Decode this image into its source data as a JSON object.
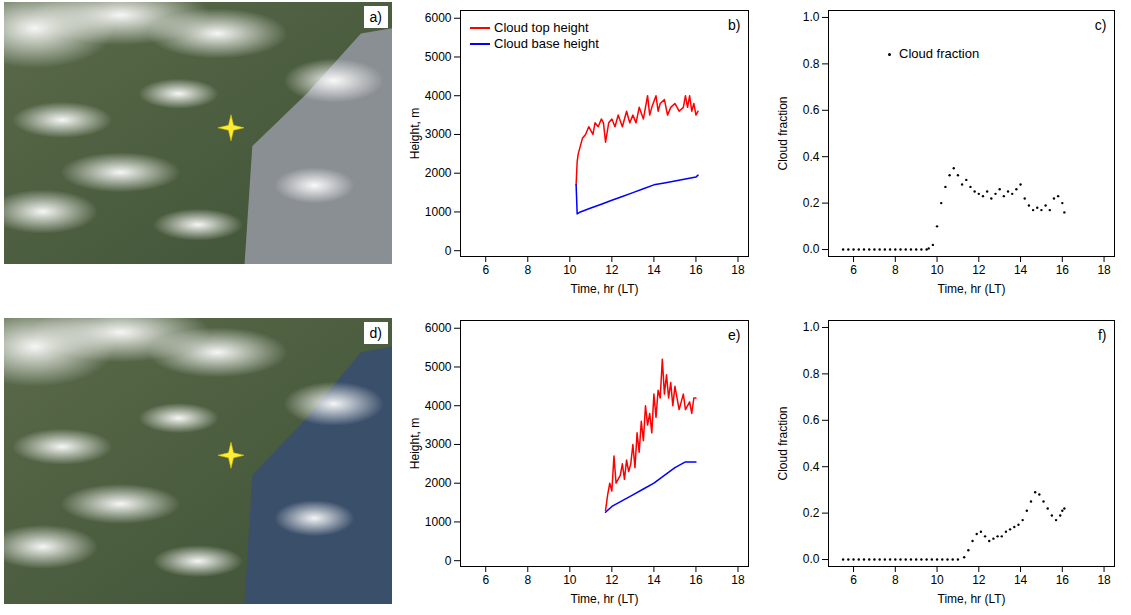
{
  "chart_data": [
    {
      "type": "image",
      "panel": "a)"
    },
    {
      "type": "line",
      "panel": "b)",
      "xlabel": "Time, hr (LT)",
      "ylabel": "Height, m",
      "xlim": [
        4.8,
        18.5
      ],
      "xticks": [
        6,
        8,
        10,
        12,
        14,
        16,
        18
      ],
      "ylim": [
        -150,
        6200
      ],
      "yticks": [
        0,
        1000,
        2000,
        3000,
        4000,
        5000,
        6000
      ],
      "legend": "upper left",
      "series": [
        {
          "name": "Cloud top height",
          "color": "#ff0000",
          "line_style": "solid",
          "x": [
            10.3,
            10.35,
            10.4,
            10.5,
            10.6,
            10.75,
            10.9,
            11,
            11.1,
            11.2,
            11.35,
            11.5,
            11.6,
            11.7,
            11.85,
            12,
            12.15,
            12.3,
            12.5,
            12.7,
            12.85,
            13,
            13.15,
            13.3,
            13.5,
            13.7,
            13.8,
            13.9,
            14.1,
            14.2,
            14.3,
            14.5,
            14.65,
            14.8,
            15,
            15.2,
            15.4,
            15.5,
            15.6,
            15.7,
            15.8,
            15.9,
            16,
            16.1
          ],
          "values": [
            1700,
            2300,
            2500,
            2700,
            2900,
            3000,
            3200,
            3100,
            3000,
            3300,
            3200,
            3400,
            3300,
            2800,
            3300,
            3400,
            3200,
            3500,
            3200,
            3600,
            3300,
            3500,
            3300,
            3700,
            3400,
            4000,
            3500,
            3700,
            4000,
            3600,
            3800,
            3900,
            3500,
            3700,
            3800,
            3600,
            3700,
            4000,
            3700,
            4000,
            3600,
            3800,
            3500,
            3600
          ]
        },
        {
          "name": "Cloud base height",
          "color": "#0000ff",
          "line_style": "solid",
          "x": [
            10.3,
            10.35,
            10.5,
            11,
            11.5,
            12,
            12.5,
            13,
            13.5,
            14,
            14.5,
            15,
            15.5,
            16,
            16.1
          ],
          "values": [
            1700,
            950,
            1000,
            1100,
            1200,
            1300,
            1400,
            1500,
            1600,
            1700,
            1750,
            1800,
            1850,
            1900,
            1950
          ]
        }
      ]
    },
    {
      "type": "scatter",
      "panel": "c)",
      "xlabel": "Time, hr (LT)",
      "ylabel": "Cloud fraction",
      "xlim": [
        4.8,
        18.5
      ],
      "xticks": [
        6,
        8,
        10,
        12,
        14,
        16,
        18
      ],
      "ylim": [
        -0.03,
        1.03
      ],
      "yticks": [
        {
          "value": 0,
          "label": "0.0"
        },
        0.2,
        0.4,
        0.6,
        0.8,
        {
          "value": 1,
          "label": "1.0"
        }
      ],
      "legend": "upper left",
      "series": [
        {
          "name": "Cloud fraction",
          "color": "#000000",
          "marker": "dot",
          "x": [
            5.5,
            5.75,
            6,
            6.25,
            6.5,
            6.75,
            7,
            7.25,
            7.5,
            7.75,
            8,
            8.25,
            8.5,
            8.75,
            9,
            9.25,
            9.5,
            9.6,
            9.8,
            10,
            10.2,
            10.4,
            10.6,
            10.8,
            11,
            11.2,
            11.4,
            11.6,
            11.8,
            12,
            12.2,
            12.4,
            12.6,
            12.8,
            13,
            13.2,
            13.4,
            13.6,
            13.8,
            14,
            14.2,
            14.4,
            14.6,
            14.8,
            15,
            15.2,
            15.4,
            15.6,
            15.8,
            16,
            16.1
          ],
          "values": [
            0,
            0,
            0,
            0,
            0,
            0,
            0,
            0,
            0,
            0,
            0,
            0,
            0,
            0,
            0,
            0,
            0,
            0.005,
            0.02,
            0.1,
            0.2,
            0.27,
            0.32,
            0.35,
            0.32,
            0.28,
            0.3,
            0.27,
            0.25,
            0.24,
            0.23,
            0.25,
            0.22,
            0.24,
            0.26,
            0.23,
            0.25,
            0.24,
            0.26,
            0.28,
            0.22,
            0.19,
            0.17,
            0.18,
            0.17,
            0.19,
            0.17,
            0.22,
            0.23,
            0.2,
            0.16
          ]
        }
      ]
    },
    {
      "type": "image",
      "panel": "d)"
    },
    {
      "type": "line",
      "panel": "e)",
      "xlabel": "Time, hr (LT)",
      "ylabel": "Height, m",
      "xlim": [
        4.8,
        18.5
      ],
      "xticks": [
        6,
        8,
        10,
        12,
        14,
        16,
        18
      ],
      "ylim": [
        -150,
        6200
      ],
      "yticks": [
        0,
        1000,
        2000,
        3000,
        4000,
        5000,
        6000
      ],
      "series": [
        {
          "color": "#ff0000",
          "line_style": "solid",
          "x": [
            11.7,
            11.8,
            11.9,
            12,
            12.1,
            12.2,
            12.4,
            12.5,
            12.6,
            12.7,
            12.8,
            12.9,
            13,
            13.1,
            13.2,
            13.3,
            13.4,
            13.5,
            13.6,
            13.7,
            13.8,
            13.9,
            14,
            14.1,
            14.2,
            14.3,
            14.4,
            14.5,
            14.6,
            14.7,
            14.8,
            14.9,
            15,
            15.2,
            15.4,
            15.5,
            15.7,
            15.8,
            15.9,
            16
          ],
          "values": [
            1300,
            1700,
            2000,
            1800,
            2700,
            2000,
            2200,
            2500,
            2100,
            2600,
            2300,
            2500,
            3000,
            2400,
            3300,
            2800,
            3600,
            3100,
            4000,
            3500,
            3800,
            3300,
            4300,
            3700,
            4400,
            4200,
            5200,
            4300,
            4800,
            4200,
            4600,
            4000,
            4500,
            3900,
            4300,
            3900,
            4100,
            3800,
            4200,
            4200
          ]
        },
        {
          "color": "#0000ff",
          "line_style": "solid",
          "x": [
            11.7,
            12,
            12.5,
            13,
            13.5,
            14,
            14.5,
            15,
            15.5,
            16
          ],
          "values": [
            1250,
            1400,
            1550,
            1700,
            1850,
            2000,
            2200,
            2400,
            2550,
            2550
          ]
        }
      ]
    },
    {
      "type": "scatter",
      "panel": "f)",
      "xlabel": "Time, hr (LT)",
      "ylabel": "Cloud fraction",
      "xlim": [
        4.8,
        18.5
      ],
      "xticks": [
        6,
        8,
        10,
        12,
        14,
        16,
        18
      ],
      "ylim": [
        -0.03,
        1.03
      ],
      "yticks": [
        {
          "value": 0,
          "label": "0.0"
        },
        0.2,
        0.4,
        0.6,
        0.8,
        {
          "value": 1,
          "label": "1.0"
        }
      ],
      "series": [
        {
          "color": "#000000",
          "marker": "dot",
          "x": [
            5.5,
            5.75,
            6,
            6.25,
            6.5,
            6.75,
            7,
            7.25,
            7.5,
            7.75,
            8,
            8.25,
            8.5,
            8.75,
            9,
            9.25,
            9.5,
            9.75,
            10,
            10.25,
            10.5,
            10.75,
            11,
            11.3,
            11.5,
            11.7,
            11.9,
            12.1,
            12.3,
            12.5,
            12.7,
            12.9,
            13.1,
            13.3,
            13.5,
            13.7,
            13.9,
            14.1,
            14.3,
            14.5,
            14.7,
            14.9,
            15.1,
            15.3,
            15.5,
            15.7,
            15.9,
            16,
            16.1
          ],
          "values": [
            0,
            0,
            0,
            0,
            0,
            0,
            0,
            0,
            0,
            0,
            0,
            0,
            0,
            0,
            0,
            0,
            0,
            0,
            0,
            0,
            0,
            0,
            0,
            0.01,
            0.04,
            0.08,
            0.11,
            0.12,
            0.1,
            0.08,
            0.09,
            0.1,
            0.1,
            0.12,
            0.13,
            0.14,
            0.15,
            0.17,
            0.21,
            0.25,
            0.29,
            0.28,
            0.25,
            0.22,
            0.19,
            0.17,
            0.19,
            0.21,
            0.22
          ]
        }
      ]
    }
  ]
}
